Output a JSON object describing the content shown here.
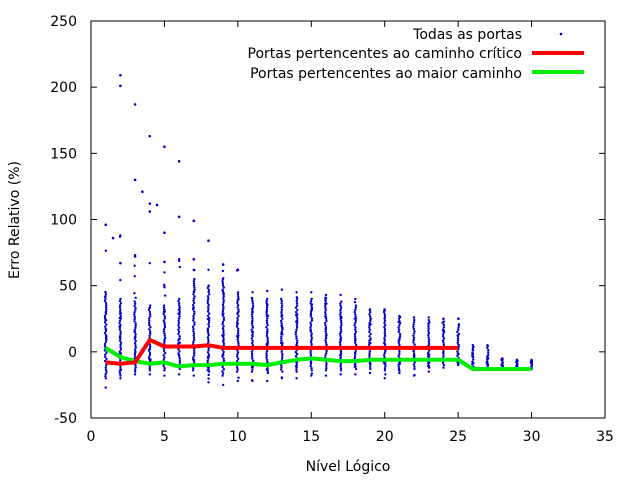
{
  "chart_data": {
    "type": "scatter",
    "xlabel": "Nível Lógico",
    "ylabel": "Erro Relativo (%)",
    "xlim": [
      0,
      35
    ],
    "ylim": [
      -50,
      250
    ],
    "xticks": [
      0,
      5,
      10,
      15,
      20,
      25,
      30,
      35
    ],
    "yticks": [
      -50,
      0,
      50,
      100,
      150,
      200,
      250
    ],
    "grid": false,
    "legend_position": "top-right",
    "series": [
      {
        "name": "Todas as portas",
        "style": "points",
        "color": "#0000cc",
        "columns": [
          {
            "x": 1,
            "min": -27,
            "max": 96,
            "dense_min": -20,
            "dense_max": 45
          },
          {
            "x": 2,
            "min": -20,
            "max": 88,
            "dense_min": -18,
            "dense_max": 40
          },
          {
            "x": 3,
            "min": -17,
            "max": 73,
            "dense_min": -15,
            "dense_max": 38
          },
          {
            "x": 4,
            "min": -17,
            "max": 67,
            "dense_min": -14,
            "dense_max": 35
          },
          {
            "x": 5,
            "min": -18,
            "max": 60,
            "dense_min": -14,
            "dense_max": 35
          },
          {
            "x": 6,
            "min": -17,
            "max": 70,
            "dense_min": -13,
            "dense_max": 40
          },
          {
            "x": 7,
            "min": -18,
            "max": 62,
            "dense_min": -14,
            "dense_max": 55
          },
          {
            "x": 8,
            "min": -23,
            "max": 62,
            "dense_min": -15,
            "dense_max": 50
          },
          {
            "x": 9,
            "min": -25,
            "max": 66,
            "dense_min": -18,
            "dense_max": 55
          },
          {
            "x": 10,
            "min": -22,
            "max": 62,
            "dense_min": -15,
            "dense_max": 45
          },
          {
            "x": 11,
            "min": -22,
            "max": 45,
            "dense_min": -15,
            "dense_max": 40
          },
          {
            "x": 12,
            "min": -22,
            "max": 46,
            "dense_min": -16,
            "dense_max": 40
          },
          {
            "x": 13,
            "min": -20,
            "max": 47,
            "dense_min": -15,
            "dense_max": 40
          },
          {
            "x": 14,
            "min": -20,
            "max": 45,
            "dense_min": -15,
            "dense_max": 40
          },
          {
            "x": 15,
            "min": -18,
            "max": 45,
            "dense_min": -14,
            "dense_max": 40
          },
          {
            "x": 16,
            "min": -18,
            "max": 43,
            "dense_min": -14,
            "dense_max": 38
          },
          {
            "x": 17,
            "min": -17,
            "max": 43,
            "dense_min": -14,
            "dense_max": 38
          },
          {
            "x": 18,
            "min": -17,
            "max": 40,
            "dense_min": -13,
            "dense_max": 35
          },
          {
            "x": 19,
            "min": -16,
            "max": 32,
            "dense_min": -13,
            "dense_max": 30
          },
          {
            "x": 20,
            "min": -20,
            "max": 32,
            "dense_min": -14,
            "dense_max": 30
          },
          {
            "x": 21,
            "min": -16,
            "max": 27,
            "dense_min": -13,
            "dense_max": 25
          },
          {
            "x": 22,
            "min": -18,
            "max": 26,
            "dense_min": -13,
            "dense_max": 24
          },
          {
            "x": 23,
            "min": -15,
            "max": 26,
            "dense_min": -12,
            "dense_max": 24
          },
          {
            "x": 24,
            "min": -12,
            "max": 25,
            "dense_min": -10,
            "dense_max": 22
          },
          {
            "x": 25,
            "min": -10,
            "max": 25,
            "dense_min": -8,
            "dense_max": 20
          },
          {
            "x": 26,
            "min": -13,
            "max": 5,
            "dense_min": -11,
            "dense_max": 3
          },
          {
            "x": 27,
            "min": -13,
            "max": 5,
            "dense_min": -11,
            "dense_max": 3
          },
          {
            "x": 28,
            "min": -13,
            "max": -5,
            "dense_min": -12,
            "dense_max": -6
          },
          {
            "x": 29,
            "min": -13,
            "max": -6,
            "dense_min": -12,
            "dense_max": -7
          },
          {
            "x": 30,
            "min": -13,
            "max": -6,
            "dense_min": -12,
            "dense_max": -7
          }
        ],
        "outliers": [
          {
            "x": 1,
            "y": 96
          },
          {
            "x": 1.5,
            "y": 86
          },
          {
            "x": 2,
            "y": 209
          },
          {
            "x": 2,
            "y": 201
          },
          {
            "x": 2,
            "y": 67
          },
          {
            "x": 3,
            "y": 187
          },
          {
            "x": 3,
            "y": 130
          },
          {
            "x": 3,
            "y": 72
          },
          {
            "x": 3.5,
            "y": 121
          },
          {
            "x": 4,
            "y": 163
          },
          {
            "x": 4,
            "y": 112
          },
          {
            "x": 4,
            "y": 106
          },
          {
            "x": 4.5,
            "y": 111
          },
          {
            "x": 5,
            "y": 155
          },
          {
            "x": 5,
            "y": 90
          },
          {
            "x": 5,
            "y": 68
          },
          {
            "x": 6,
            "y": 144
          },
          {
            "x": 6,
            "y": 102
          },
          {
            "x": 7,
            "y": 99
          },
          {
            "x": 7,
            "y": 70
          },
          {
            "x": 8,
            "y": 84
          },
          {
            "x": 9,
            "y": 66
          },
          {
            "x": 10,
            "y": 62
          }
        ]
      },
      {
        "name": "Portas pertencentes ao caminho crítico",
        "style": "line",
        "color": "#ff0000",
        "x": [
          1,
          2,
          3,
          4,
          5,
          6,
          7,
          8,
          9,
          10,
          11,
          12,
          13,
          14,
          15,
          16,
          17,
          18,
          19,
          20,
          21,
          22,
          23,
          24,
          25
        ],
        "y": [
          -8,
          -9,
          -8,
          9,
          4,
          4,
          4,
          5,
          3,
          3,
          3,
          3,
          3,
          3,
          3,
          3,
          3,
          3,
          3,
          3,
          3,
          3,
          3,
          3,
          3
        ]
      },
      {
        "name": "Portas pertencentes ao maior caminho",
        "style": "line",
        "color": "#00ee00",
        "x": [
          1,
          2,
          3,
          4,
          5,
          6,
          7,
          8,
          9,
          10,
          11,
          12,
          13,
          14,
          15,
          16,
          17,
          18,
          19,
          20,
          21,
          22,
          23,
          24,
          25,
          26,
          27,
          28,
          29,
          30
        ],
        "y": [
          3,
          -4,
          -7,
          -9,
          -8,
          -11,
          -10,
          -10,
          -9,
          -9,
          -9,
          -10,
          -8,
          -6,
          -5,
          -6,
          -7,
          -7,
          -6,
          -6,
          -6,
          -6,
          -6,
          -6,
          -6,
          -13,
          -13,
          -13,
          -13,
          -13
        ]
      }
    ]
  }
}
